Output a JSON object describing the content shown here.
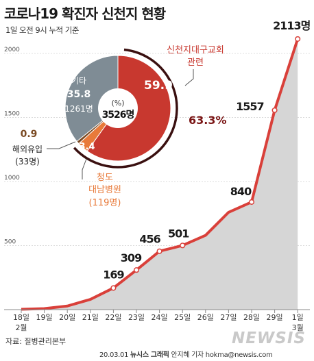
{
  "header": {
    "title": "코로나19 확진자 신천지 현황",
    "subtitle": "1일 오전 9시 누적 기준"
  },
  "footer": {
    "source": "자료: 질병관리본부",
    "date": "20.03.01",
    "agency": "뉴시스 그래픽",
    "author": "안지혜 기자",
    "email": "hokma@newsis.com",
    "watermark": "NEWSIS"
  },
  "colors": {
    "line": "#d9403a",
    "area": "#d6d6d6",
    "pie_shincheonji": "#c8382f",
    "pie_other": "#7f8c95",
    "pie_cheongdo": "#e87a3a",
    "pie_overseas": "#7a4a23",
    "pct_text": "#7a1515"
  },
  "chart_data": [
    {
      "type": "area",
      "title": "",
      "xlabel": "",
      "ylabel": "",
      "categories": [
        "18일",
        "19일",
        "20일",
        "21일",
        "22일",
        "23일",
        "24일",
        "25일",
        "26일",
        "27일",
        "28일",
        "29일",
        "1일"
      ],
      "month_labels": [
        "2월",
        "3월"
      ],
      "x_month_marks": [
        {
          "label": "2월",
          "under": "18일"
        },
        {
          "label": "3월",
          "under": "1일"
        }
      ],
      "ylim": [
        0,
        2150
      ],
      "yticks": [
        500,
        1000,
        1500,
        2000
      ],
      "grid": true,
      "series": [
        {
          "values": [
            3,
            8,
            28,
            80,
            169,
            309,
            456,
            501,
            580,
            760,
            840,
            1557,
            2113
          ],
          "labels": [
            "",
            "",
            "",
            "",
            "169",
            "309",
            "456",
            "501",
            "",
            "",
            "840",
            "1557",
            "2113명"
          ]
        }
      ]
    },
    {
      "type": "pie",
      "title": "",
      "center_label": "(%)",
      "center_value": "3526명",
      "slices": [
        {
          "name": "신천지대구교회\n관련",
          "value": 59.9
        },
        {
          "name": "청도\n대남병원",
          "value": 3.4,
          "count": "(119명)"
        },
        {
          "name": "해외유입",
          "value": 0.9,
          "count": "(33명)"
        },
        {
          "name": "기타",
          "value": 35.8,
          "count": "1261명"
        }
      ],
      "combined_label": "63.3%"
    }
  ]
}
